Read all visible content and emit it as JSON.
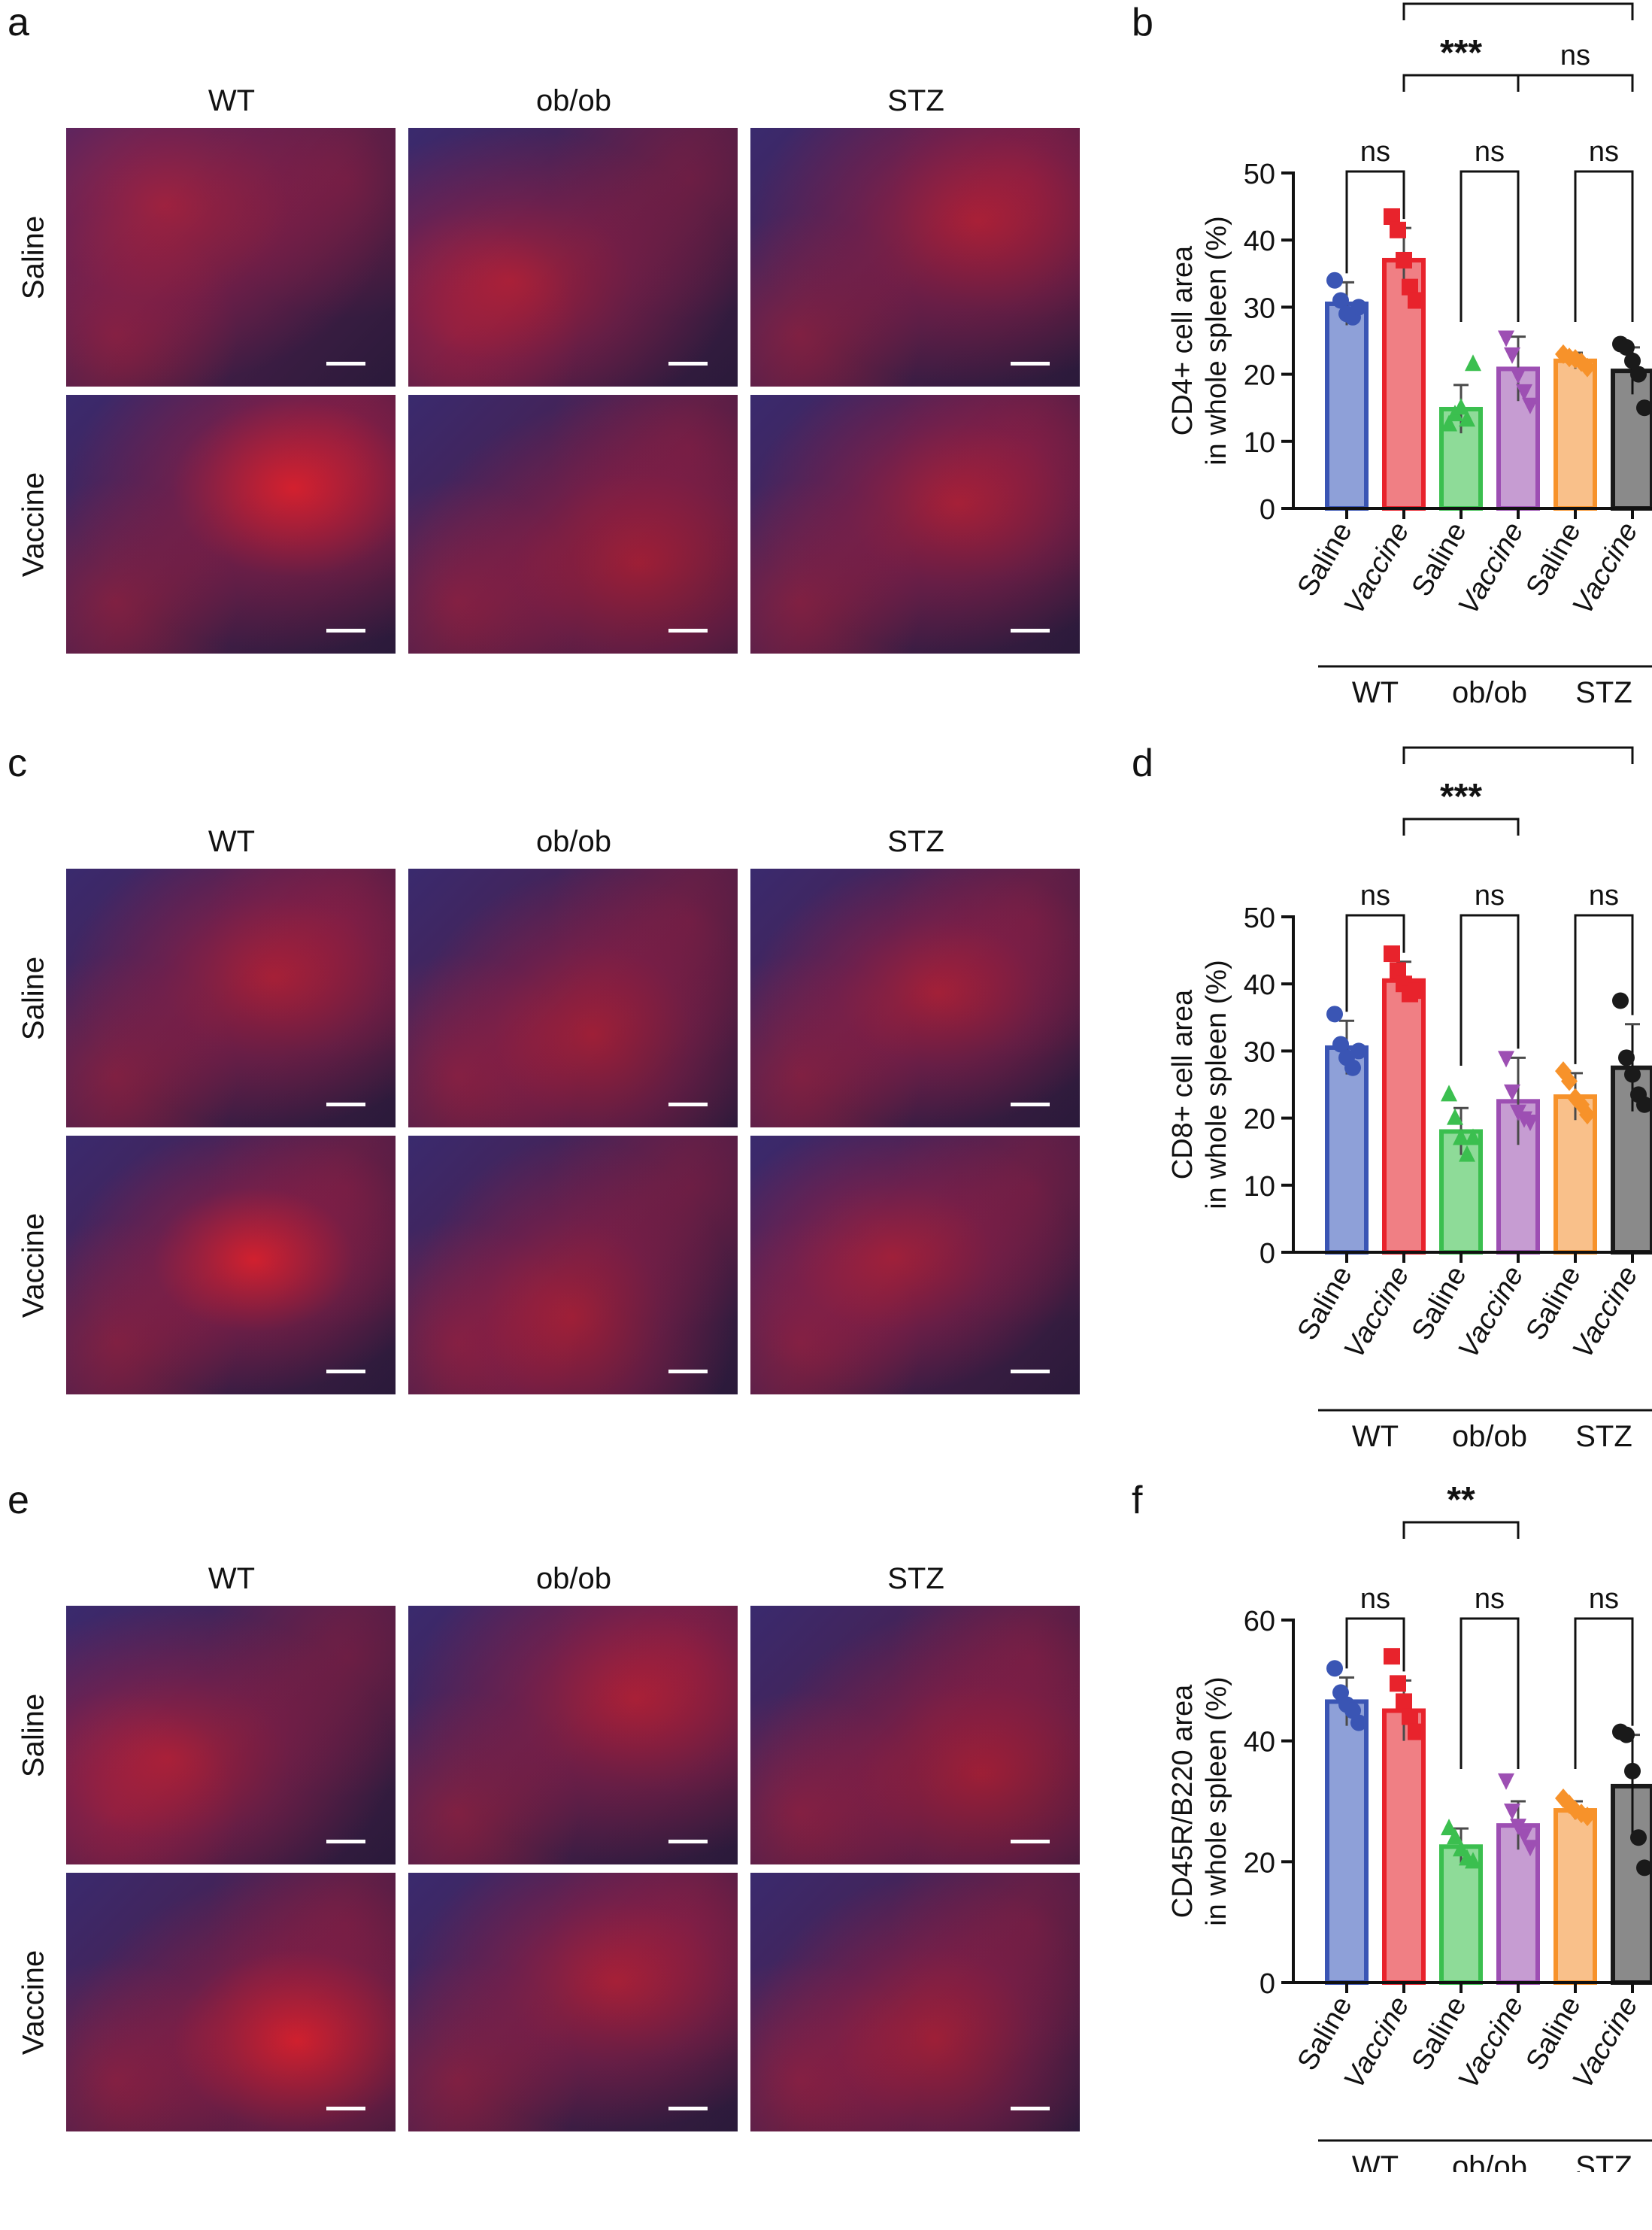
{
  "panel_letters": [
    "a",
    "b",
    "c",
    "d",
    "e",
    "f"
  ],
  "columns": [
    "WT",
    "ob/ob",
    "STZ"
  ],
  "rows": [
    "Saline",
    "Vaccine"
  ],
  "colors": {
    "wt_saline": "#3a55b4",
    "wt_vaccine": "#e8232c",
    "obob_saline": "#3bbf4f",
    "obob_vaccine": "#9d4fb3",
    "stz_saline": "#f7922a",
    "stz_vaccine": "#1a1a1a",
    "stain_red": "#e8202a",
    "stain_blue": "#3c3c9a"
  },
  "chart_data": [
    {
      "panel": "b",
      "type": "bar",
      "ylabel_line1": "CD4+ cell area",
      "ylabel_line2": "in whole spleen (%)",
      "ylim": [
        0,
        50
      ],
      "yticks": [
        "0",
        "10",
        "20",
        "30",
        "40",
        "50"
      ],
      "categories": [
        "Saline",
        "Vaccine",
        "Saline",
        "Vaccine",
        "Saline",
        "Vaccine"
      ],
      "groups": [
        "WT",
        "ob/ob",
        "STZ"
      ],
      "values": [
        30.5,
        37,
        14.8,
        20.8,
        22,
        20.5
      ],
      "errors": [
        3.2,
        4.8,
        3.6,
        4.8,
        1.2,
        3.5
      ],
      "points": [
        [
          34,
          31,
          29,
          28.5,
          30
        ],
        [
          43.5,
          41.5,
          37,
          33,
          31
        ],
        [
          12.5,
          14,
          15,
          13.2,
          21.5
        ],
        [
          25.5,
          23,
          20,
          17.5,
          15.5
        ],
        [
          23,
          22.5,
          22.3,
          21.8,
          21
        ],
        [
          24.5,
          24,
          22,
          20,
          15
        ]
      ],
      "comparisons": [
        {
          "label": "ns",
          "from": 0,
          "to": 1,
          "level": 0
        },
        {
          "label": "ns",
          "from": 2,
          "to": 3,
          "level": 0
        },
        {
          "label": "ns",
          "from": 4,
          "to": 5,
          "level": 0
        },
        {
          "label": "***",
          "from": 1,
          "to": 3,
          "level": 1
        },
        {
          "label": "ns",
          "from": 3,
          "to": 5,
          "level": 1
        },
        {
          "label": "***",
          "from": 1,
          "to": 5,
          "level": 2
        }
      ]
    },
    {
      "panel": "d",
      "type": "bar",
      "ylabel_line1": "CD8+ cell area",
      "ylabel_line2": "in whole spleen (%)",
      "ylim": [
        0,
        50
      ],
      "yticks": [
        "0",
        "10",
        "20",
        "30",
        "40",
        "50"
      ],
      "categories": [
        "Saline",
        "Vaccine",
        "Saline",
        "Vaccine",
        "Saline",
        "Vaccine"
      ],
      "groups": [
        "WT",
        "ob/ob",
        "STZ"
      ],
      "values": [
        30.5,
        40.5,
        18,
        22.5,
        23.2,
        27.5
      ],
      "errors": [
        4,
        2.8,
        3.5,
        6.5,
        3.5,
        6.5
      ],
      "points": [
        [
          35.5,
          31,
          29,
          27.5,
          30
        ],
        [
          44.5,
          42,
          40,
          38.5,
          39
        ],
        [
          23.5,
          20,
          17,
          14.5,
          17
        ],
        [
          29,
          24,
          21,
          20,
          19.5
        ],
        [
          27,
          25.5,
          23,
          22,
          20.5
        ],
        [
          37.5,
          29,
          26.5,
          23.5,
          22
        ]
      ],
      "comparisons": [
        {
          "label": "ns",
          "from": 0,
          "to": 1,
          "level": 0
        },
        {
          "label": "ns",
          "from": 2,
          "to": 3,
          "level": 0
        },
        {
          "label": "ns",
          "from": 4,
          "to": 5,
          "level": 0
        },
        {
          "label": "***",
          "from": 1,
          "to": 3,
          "level": 1
        },
        {
          "label": "*",
          "from": 1,
          "to": 5,
          "level": 2
        }
      ]
    },
    {
      "panel": "f",
      "type": "bar",
      "ylabel_line1": "CD45R/B220 area",
      "ylabel_line2": "in whole spleen (%)",
      "ylim": [
        0,
        60
      ],
      "yticks": [
        "0",
        "20",
        "40",
        "60"
      ],
      "categories": [
        "Saline",
        "Vaccine",
        "Saline",
        "Vaccine",
        "Saline",
        "Vaccine"
      ],
      "groups": [
        "WT",
        "ob/ob",
        "STZ"
      ],
      "values": [
        46.5,
        45,
        22.5,
        26,
        28.5,
        32.5
      ],
      "errors": [
        4,
        5,
        3,
        4,
        1.5,
        8.5
      ],
      "points": [
        [
          52,
          48,
          46,
          45,
          43
        ],
        [
          54,
          49.5,
          46.5,
          44,
          41.5
        ],
        [
          25.5,
          24,
          22,
          20.5,
          20
        ],
        [
          33.5,
          28.5,
          26,
          24.5,
          22.5
        ],
        [
          30.5,
          29.5,
          28.5,
          28,
          27.5
        ],
        [
          41.5,
          41,
          35,
          24,
          19
        ]
      ],
      "comparisons": [
        {
          "label": "ns",
          "from": 0,
          "to": 1,
          "level": 0
        },
        {
          "label": "ns",
          "from": 2,
          "to": 3,
          "level": 0
        },
        {
          "label": "ns",
          "from": 4,
          "to": 5,
          "level": 0
        },
        {
          "label": "**",
          "from": 1,
          "to": 3,
          "level": 1
        },
        {
          "label": "*",
          "from": 1,
          "to": 5,
          "level": 2
        }
      ]
    }
  ]
}
